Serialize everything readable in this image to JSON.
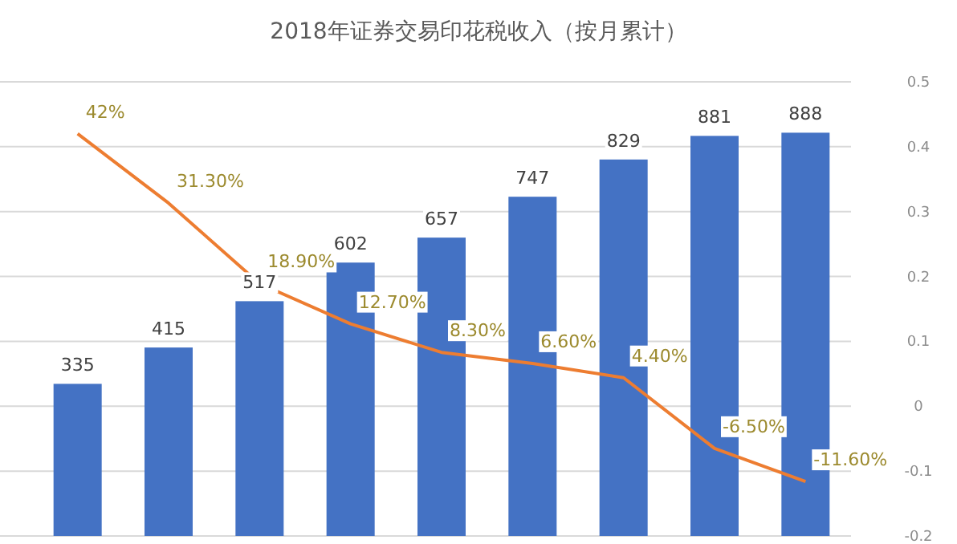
{
  "chart_data": {
    "type": "bar",
    "title": "2018年证券交易印花税收入（按月累计）",
    "categories": [
      null,
      null,
      null,
      null,
      null,
      null,
      null,
      null,
      null
    ],
    "ylim": [
      0,
      1000
    ],
    "tick_labels": "y2",
    "data_labels": true,
    "grid": "y2",
    "y2lim": [
      -0.2,
      0.5
    ],
    "y2ticks": [
      -0.2,
      -0.1,
      0,
      0.1,
      0.2,
      0.3,
      0.4,
      0.5
    ],
    "series": [
      {
        "color": "#4472c4",
        "values": [
          335,
          415,
          517,
          602,
          657,
          747,
          829,
          881,
          888
        ]
      },
      {
        "type": "line",
        "axis": "y2",
        "color": "#ed7d31",
        "values": [
          0.42,
          0.313,
          0.189,
          0.127,
          0.083,
          0.066,
          0.044,
          -0.065,
          -0.116
        ],
        "value_labels": [
          "42%",
          "31.30%",
          "18.90%",
          "12.70%",
          "8.30%",
          "6.60%",
          "4.40%",
          "-6.50%",
          "-11.60%"
        ]
      }
    ]
  }
}
